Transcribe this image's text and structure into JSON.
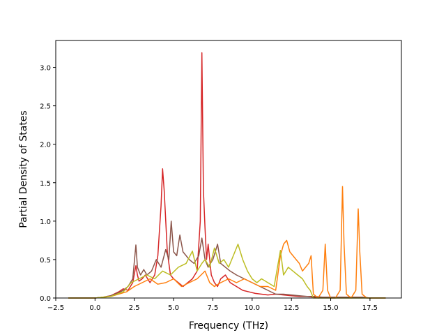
{
  "chart_data": {
    "type": "line",
    "title": "",
    "xlabel": "Frequency (THz)",
    "ylabel": "Partial Density of States",
    "xlim": [
      -2.5,
      19.5
    ],
    "ylim": [
      0.0,
      3.35
    ],
    "xticks": [
      -2.5,
      0.0,
      2.5,
      5.0,
      7.5,
      10.0,
      12.5,
      15.0,
      17.5
    ],
    "xtick_labels": [
      "−2.5",
      "0.0",
      "2.5",
      "5.0",
      "7.5",
      "10.0",
      "12.5",
      "15.0",
      "17.5"
    ],
    "yticks": [
      0.0,
      0.5,
      1.0,
      1.5,
      2.0,
      2.5,
      3.0
    ],
    "ytick_labels": [
      "0.0",
      "0.5",
      "1.0",
      "1.5",
      "2.0",
      "2.5",
      "3.0"
    ],
    "grid": false,
    "legend": false,
    "series": [
      {
        "color": "#d62728",
        "x": [
          -1.7,
          0.0,
          0.5,
          1.0,
          1.5,
          1.8,
          2.1,
          2.4,
          2.6,
          2.7,
          2.8,
          3.0,
          3.2,
          3.5,
          3.8,
          4.0,
          4.2,
          4.3,
          4.4,
          4.6,
          4.8,
          5.0,
          5.3,
          5.6,
          5.9,
          6.2,
          6.5,
          6.7,
          6.8,
          6.9,
          7.0,
          7.1,
          7.2,
          7.4,
          7.6,
          7.8,
          8.0,
          8.3,
          8.6,
          9.0,
          9.4,
          9.8,
          10.2,
          10.6,
          11.0,
          11.5,
          12.0,
          12.5,
          13.0,
          13.5,
          14.0,
          14.5,
          15.0,
          15.5,
          16.0,
          16.5,
          17.0,
          17.5,
          18.0,
          18.5
        ],
        "values": [
          0,
          0,
          0.01,
          0.03,
          0.08,
          0.12,
          0.1,
          0.2,
          0.42,
          0.3,
          0.22,
          0.25,
          0.3,
          0.2,
          0.3,
          0.55,
          1.2,
          1.68,
          1.4,
          0.6,
          0.3,
          0.25,
          0.2,
          0.15,
          0.2,
          0.25,
          0.35,
          1.0,
          3.19,
          1.4,
          0.91,
          0.5,
          0.7,
          0.3,
          0.2,
          0.15,
          0.25,
          0.3,
          0.2,
          0.15,
          0.1,
          0.08,
          0.06,
          0.05,
          0.04,
          0.05,
          0.04,
          0.03,
          0.02,
          0.02,
          0.01,
          0.01,
          0.01,
          0.01,
          0.01,
          0.01,
          0.01,
          0,
          0,
          0
        ]
      },
      {
        "color": "#8c564b",
        "x": [
          -1.7,
          0.0,
          0.5,
          1.0,
          1.5,
          1.8,
          2.1,
          2.4,
          2.6,
          2.7,
          2.9,
          3.1,
          3.3,
          3.6,
          3.9,
          4.2,
          4.5,
          4.7,
          4.85,
          5.0,
          5.2,
          5.4,
          5.6,
          5.8,
          6.0,
          6.3,
          6.6,
          6.8,
          7.0,
          7.2,
          7.5,
          7.8,
          8.0,
          8.3,
          8.6,
          9.0,
          9.5,
          10.0,
          10.5,
          11.0,
          11.5,
          12.0,
          12.5,
          13.0,
          13.5,
          14.0,
          14.5,
          15.0,
          15.5,
          16.0,
          16.5,
          17.0,
          17.5,
          18.0,
          18.5
        ],
        "values": [
          0,
          0,
          0.01,
          0.03,
          0.07,
          0.1,
          0.15,
          0.25,
          0.69,
          0.4,
          0.3,
          0.37,
          0.3,
          0.35,
          0.5,
          0.4,
          0.63,
          0.5,
          1.0,
          0.6,
          0.55,
          0.82,
          0.6,
          0.55,
          0.5,
          0.45,
          0.55,
          0.78,
          0.5,
          0.4,
          0.5,
          0.7,
          0.45,
          0.4,
          0.35,
          0.3,
          0.25,
          0.2,
          0.15,
          0.1,
          0.05,
          0.05,
          0.04,
          0.03,
          0.02,
          0.02,
          0.01,
          0.01,
          0.01,
          0.01,
          0.01,
          0.01,
          0,
          0,
          0
        ]
      },
      {
        "color": "#ff7f0e",
        "x": [
          -1.7,
          0.0,
          1.0,
          2.0,
          2.5,
          3.0,
          3.5,
          4.0,
          4.5,
          5.0,
          5.5,
          6.0,
          6.5,
          7.0,
          7.3,
          7.6,
          8.0,
          8.5,
          9.0,
          9.5,
          10.0,
          10.5,
          11.0,
          11.5,
          11.8,
          12.0,
          12.2,
          12.4,
          12.6,
          12.8,
          13.0,
          13.2,
          13.4,
          13.6,
          13.75,
          13.9,
          14.2,
          14.5,
          14.65,
          14.8,
          15.0,
          15.3,
          15.6,
          15.75,
          15.85,
          16.0,
          16.3,
          16.6,
          16.75,
          16.85,
          17.0,
          17.3,
          17.8,
          18.5
        ],
        "values": [
          0,
          0,
          0.02,
          0.08,
          0.15,
          0.2,
          0.25,
          0.18,
          0.2,
          0.25,
          0.15,
          0.2,
          0.25,
          0.35,
          0.2,
          0.15,
          0.2,
          0.25,
          0.2,
          0.25,
          0.2,
          0.15,
          0.15,
          0.1,
          0.55,
          0.7,
          0.75,
          0.6,
          0.55,
          0.5,
          0.45,
          0.35,
          0.4,
          0.45,
          0.55,
          0.05,
          0.0,
          0.1,
          0.7,
          0.1,
          0.0,
          0.0,
          0.1,
          1.45,
          0.7,
          0.05,
          0.0,
          0.1,
          1.16,
          0.6,
          0.05,
          0.0,
          0.0,
          0.0
        ]
      },
      {
        "color": "#bcbd22",
        "x": [
          -1.7,
          0.0,
          1.0,
          1.8,
          2.3,
          2.8,
          3.3,
          3.8,
          4.3,
          4.8,
          5.3,
          5.8,
          6.2,
          6.5,
          6.8,
          7.0,
          7.3,
          7.6,
          7.9,
          8.2,
          8.5,
          8.8,
          9.1,
          9.4,
          9.7,
          10.0,
          10.3,
          10.6,
          11.0,
          11.4,
          11.8,
          12.0,
          12.3,
          12.6,
          12.9,
          13.2,
          13.5,
          13.7,
          13.9,
          14.2,
          14.5,
          15.0,
          15.5,
          16.0,
          16.5,
          17.0,
          17.5,
          18.0,
          18.5
        ],
        "values": [
          0,
          0,
          0.02,
          0.08,
          0.2,
          0.25,
          0.3,
          0.25,
          0.35,
          0.3,
          0.4,
          0.45,
          0.61,
          0.35,
          0.45,
          0.5,
          0.4,
          0.65,
          0.45,
          0.5,
          0.4,
          0.55,
          0.7,
          0.5,
          0.35,
          0.25,
          0.2,
          0.25,
          0.2,
          0.15,
          0.62,
          0.3,
          0.4,
          0.35,
          0.3,
          0.25,
          0.15,
          0.1,
          0.0,
          0.0,
          0.0,
          0.0,
          0.0,
          0.0,
          0.0,
          0.0,
          0.0,
          0.0,
          0.0
        ]
      }
    ]
  }
}
